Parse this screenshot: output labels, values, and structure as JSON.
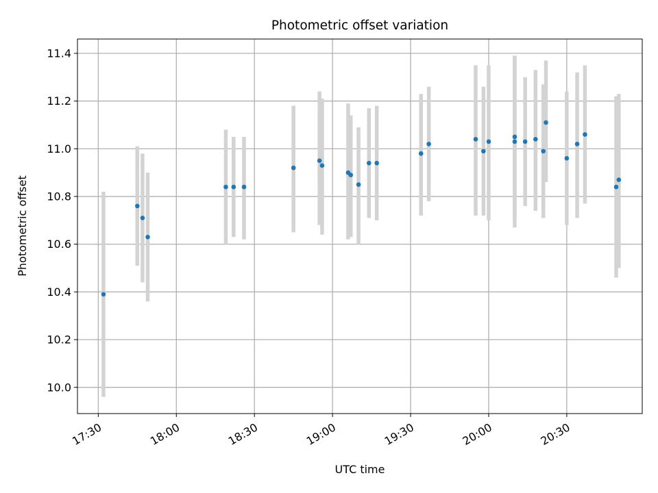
{
  "chart_data": {
    "type": "scatter",
    "title": "Photometric offset variation",
    "xlabel": "UTC time",
    "ylabel": "Photometric offset",
    "x_ticks": [
      "17:30",
      "18:00",
      "18:30",
      "19:00",
      "19:30",
      "20:00",
      "20:30"
    ],
    "y_ticks": [
      "10.0",
      "10.2",
      "10.4",
      "10.6",
      "10.8",
      "11.0",
      "11.2",
      "11.4"
    ],
    "xlim": [
      "17:22",
      "20:59"
    ],
    "ylim": [
      9.89,
      11.46
    ],
    "grid": true,
    "colors": {
      "point": "#1f77b4",
      "errorbar": "#d3d3d3",
      "grid": "#b0b0b0"
    },
    "series": [
      {
        "points": [
          {
            "x": "17:32",
            "y": 10.39,
            "low": 9.96,
            "high": 10.82
          },
          {
            "x": "17:45",
            "y": 10.76,
            "low": 10.51,
            "high": 11.01
          },
          {
            "x": "17:47",
            "y": 10.71,
            "low": 10.44,
            "high": 10.98
          },
          {
            "x": "17:49",
            "y": 10.63,
            "low": 10.36,
            "high": 10.9
          },
          {
            "x": "18:19",
            "y": 10.84,
            "low": 10.6,
            "high": 11.08
          },
          {
            "x": "18:22",
            "y": 10.84,
            "low": 10.63,
            "high": 11.05
          },
          {
            "x": "18:26",
            "y": 10.84,
            "low": 10.62,
            "high": 11.05
          },
          {
            "x": "18:45",
            "y": 10.92,
            "low": 10.65,
            "high": 11.18
          },
          {
            "x": "18:55",
            "y": 10.95,
            "low": 10.68,
            "high": 11.24
          },
          {
            "x": "18:56",
            "y": 10.93,
            "low": 10.64,
            "high": 11.21
          },
          {
            "x": "19:06",
            "y": 10.9,
            "low": 10.62,
            "high": 11.19
          },
          {
            "x": "19:07",
            "y": 10.89,
            "low": 10.63,
            "high": 11.14
          },
          {
            "x": "19:10",
            "y": 10.85,
            "low": 10.6,
            "high": 11.09
          },
          {
            "x": "19:14",
            "y": 10.94,
            "low": 10.71,
            "high": 11.17
          },
          {
            "x": "19:17",
            "y": 10.94,
            "low": 10.7,
            "high": 11.18
          },
          {
            "x": "19:34",
            "y": 10.98,
            "low": 10.72,
            "high": 11.23
          },
          {
            "x": "19:37",
            "y": 11.02,
            "low": 10.78,
            "high": 11.26
          },
          {
            "x": "19:55",
            "y": 11.04,
            "low": 10.72,
            "high": 11.35
          },
          {
            "x": "19:58",
            "y": 10.99,
            "low": 10.72,
            "high": 11.26
          },
          {
            "x": "20:00",
            "y": 11.03,
            "low": 10.7,
            "high": 11.35
          },
          {
            "x": "20:10",
            "y": 11.03,
            "low": 10.67,
            "high": 11.39
          },
          {
            "x": "20:10",
            "y": 11.05,
            "low": 10.71,
            "high": 11.39
          },
          {
            "x": "20:14",
            "y": 11.03,
            "low": 10.76,
            "high": 11.3
          },
          {
            "x": "20:18",
            "y": 11.04,
            "low": 10.74,
            "high": 11.33
          },
          {
            "x": "20:21",
            "y": 10.99,
            "low": 10.71,
            "high": 11.27
          },
          {
            "x": "20:22",
            "y": 11.11,
            "low": 10.86,
            "high": 11.37
          },
          {
            "x": "20:30",
            "y": 10.96,
            "low": 10.68,
            "high": 11.24
          },
          {
            "x": "20:34",
            "y": 11.02,
            "low": 10.71,
            "high": 11.32
          },
          {
            "x": "20:37",
            "y": 11.06,
            "low": 10.77,
            "high": 11.35
          },
          {
            "x": "20:49",
            "y": 10.84,
            "low": 10.46,
            "high": 11.22
          },
          {
            "x": "20:50",
            "y": 10.87,
            "low": 10.5,
            "high": 11.23
          }
        ]
      }
    ]
  }
}
